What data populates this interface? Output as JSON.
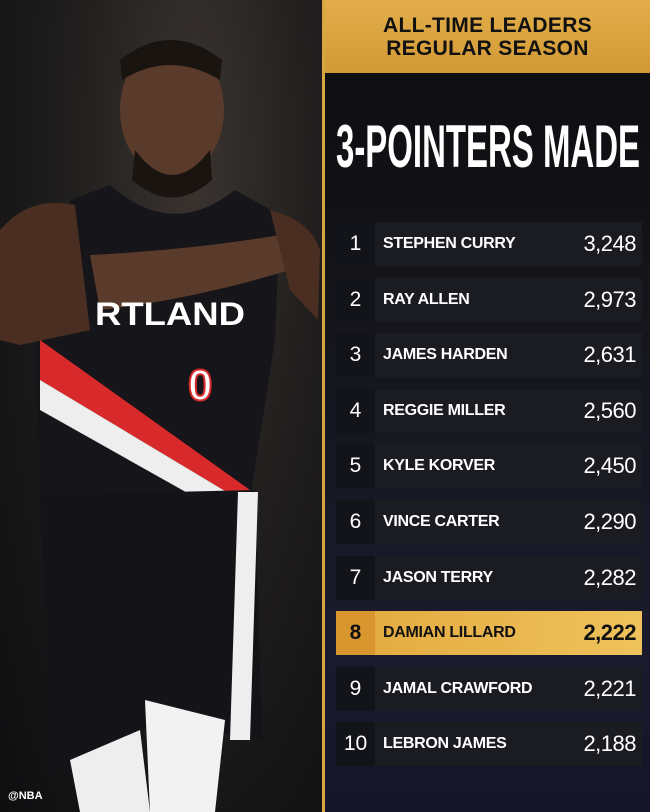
{
  "credit": "@NBA",
  "header": {
    "line1": "ALL-TIME LEADERS",
    "line2": "REGULAR SEASON"
  },
  "title": "3-POINTERS MADE",
  "accent": "#e2ad4a",
  "leaders": [
    {
      "rank": "1",
      "name": "STEPHEN CURRY",
      "value": "3,248"
    },
    {
      "rank": "2",
      "name": "RAY ALLEN",
      "value": "2,973"
    },
    {
      "rank": "3",
      "name": "JAMES HARDEN",
      "value": "2,631"
    },
    {
      "rank": "4",
      "name": "REGGIE MILLER",
      "value": "2,560"
    },
    {
      "rank": "5",
      "name": "KYLE KORVER",
      "value": "2,450"
    },
    {
      "rank": "6",
      "name": "VINCE CARTER",
      "value": "2,290"
    },
    {
      "rank": "7",
      "name": "JASON TERRY",
      "value": "2,282"
    },
    {
      "rank": "8",
      "name": "DAMIAN LILLARD",
      "value": "2,222",
      "highlighted": true
    },
    {
      "rank": "9",
      "name": "JAMAL CRAWFORD",
      "value": "2,221"
    },
    {
      "rank": "10",
      "name": "LEBRON JAMES",
      "value": "2,188"
    }
  ],
  "photo": {
    "jersey_text": "RTLAND",
    "jersey_number": "0"
  }
}
